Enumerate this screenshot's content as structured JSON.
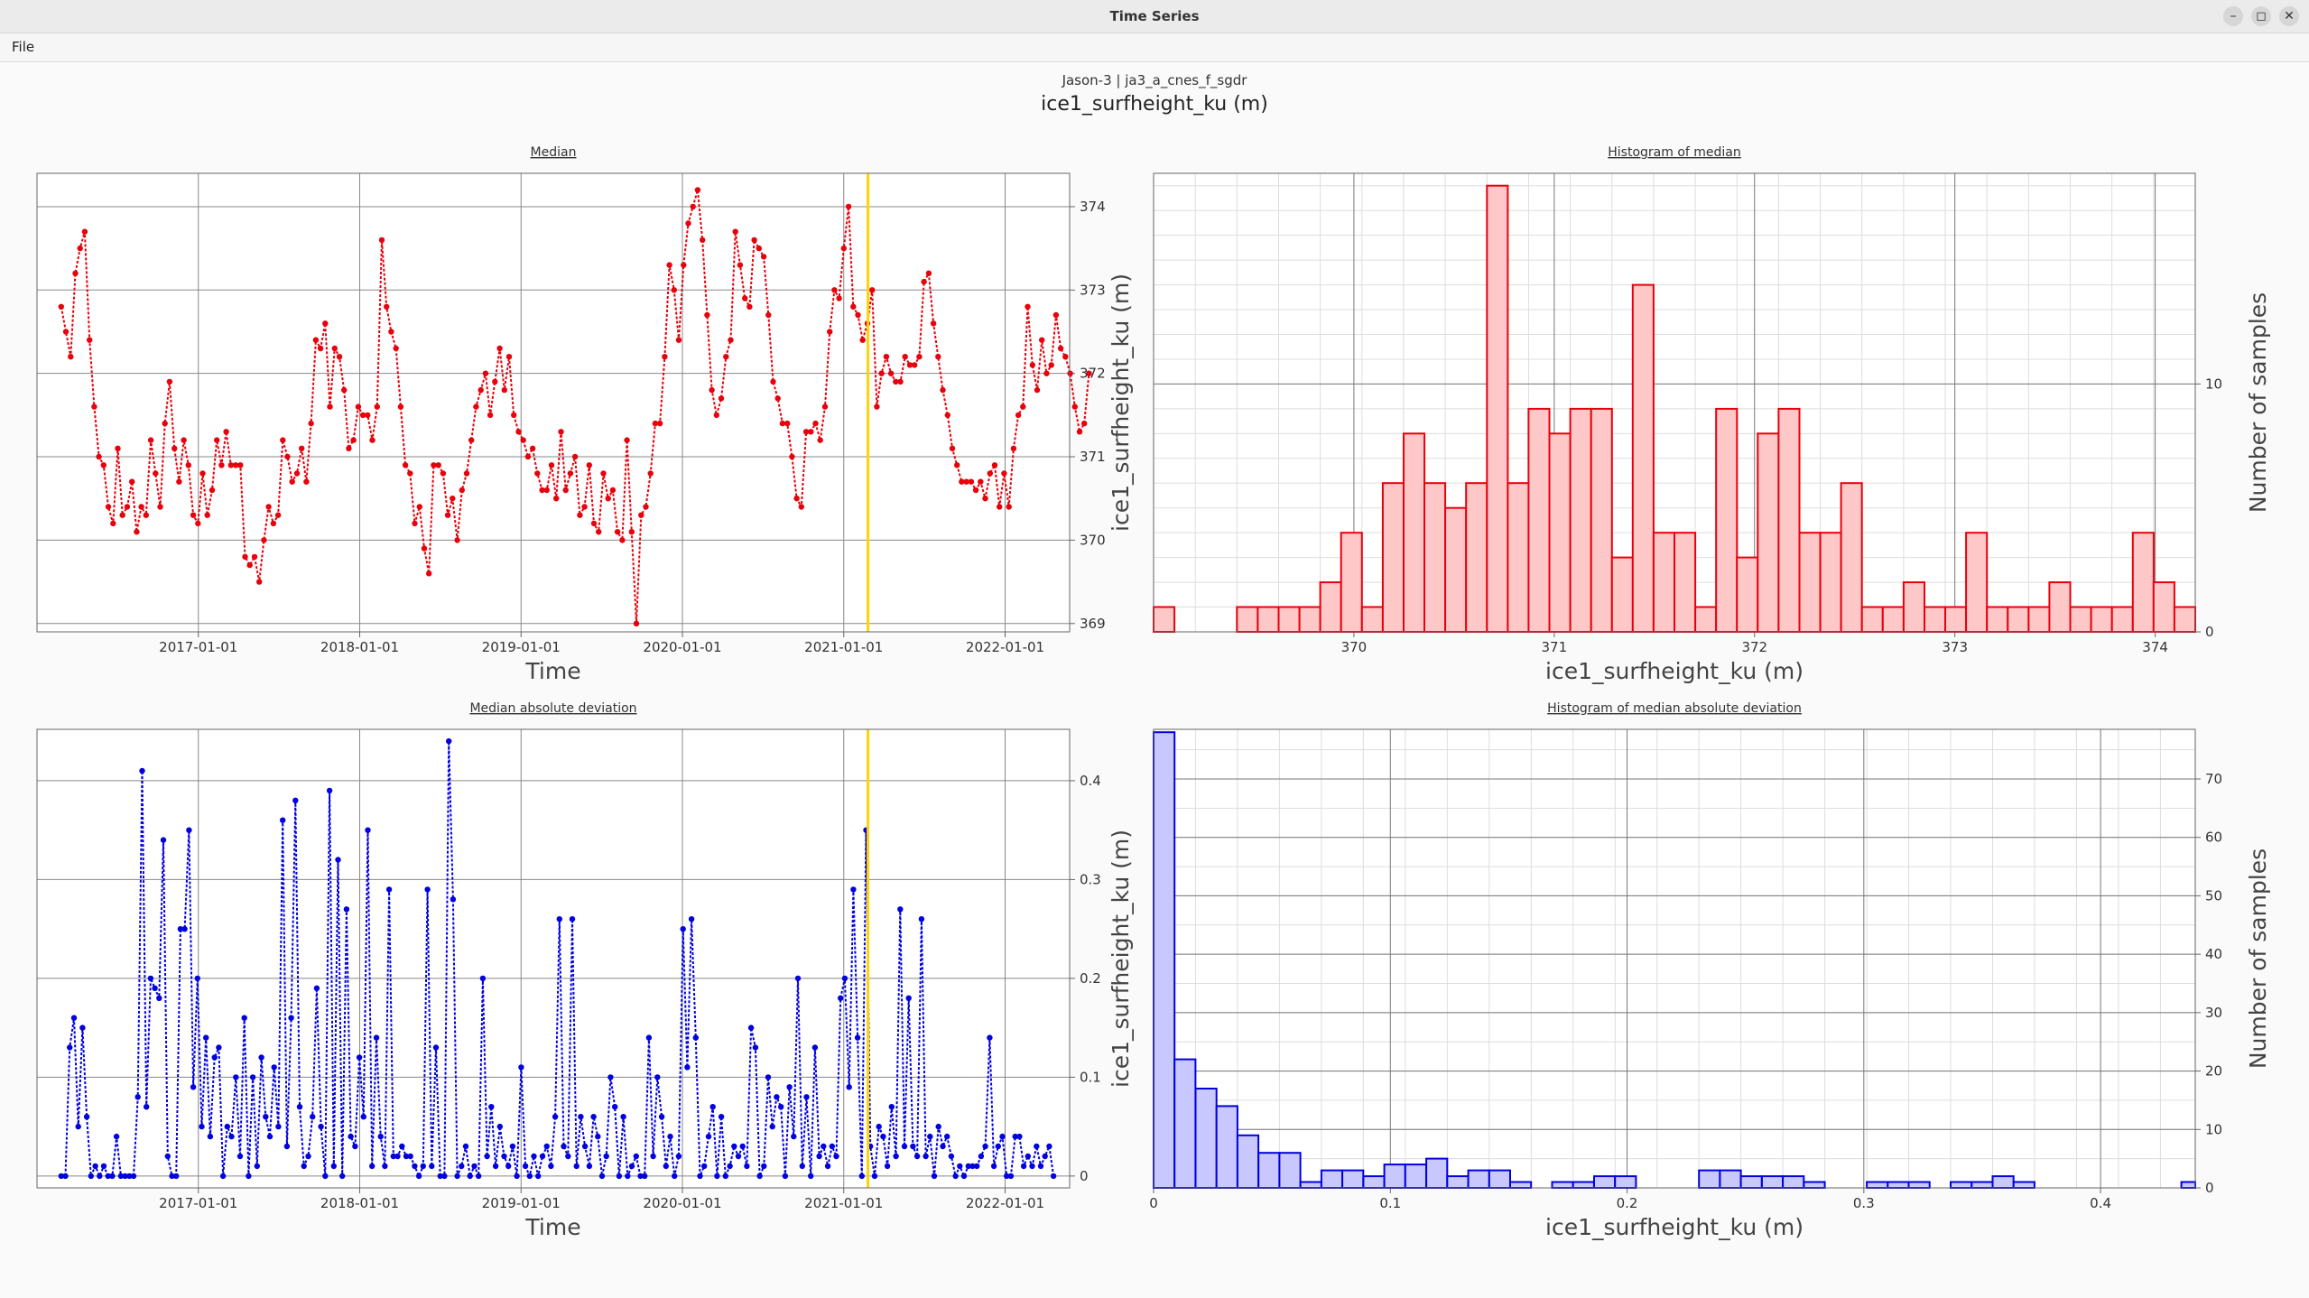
{
  "window": {
    "title": "Time Series"
  },
  "menu": {
    "file": "File"
  },
  "header": {
    "mission": "Jason-3 | ja3_a_cnes_f_sgdr",
    "variable": "ice1_surfheight_ku (m)"
  },
  "colors": {
    "median": "#e8000b",
    "mad": "#0000e0",
    "cursor": "#ffd400",
    "median_fill": "#ffc8c8",
    "mad_fill": "#c8c8ff"
  },
  "chart_data": [
    {
      "id": "median",
      "type": "line",
      "title": "Median",
      "xlabel": "Time",
      "ylabel": "",
      "x_ticks": [
        "2017-01-01",
        "2018-01-01",
        "2019-01-01",
        "2020-01-01",
        "2021-01-01",
        "2022-01-01"
      ],
      "x_start": 2016.15,
      "x_end": 2022.52,
      "xlim": [
        2016.0,
        2022.4
      ],
      "ylim": [
        368.9,
        374.4
      ],
      "y_ticks": [
        369,
        370,
        371,
        372,
        373,
        374
      ],
      "cursor_x": 2021.15,
      "values": [
        372.8,
        372.5,
        372.2,
        373.2,
        373.5,
        373.7,
        372.4,
        371.6,
        371.0,
        370.9,
        370.4,
        370.2,
        371.1,
        370.3,
        370.4,
        370.7,
        370.1,
        370.4,
        370.3,
        371.2,
        370.8,
        370.4,
        371.4,
        371.9,
        371.1,
        370.7,
        371.2,
        370.9,
        370.3,
        370.2,
        370.8,
        370.3,
        370.6,
        371.2,
        370.9,
        371.3,
        370.9,
        370.9,
        370.9,
        369.8,
        369.7,
        369.8,
        369.5,
        370.0,
        370.4,
        370.2,
        370.3,
        371.2,
        371.0,
        370.7,
        370.8,
        371.1,
        370.7,
        371.4,
        372.4,
        372.3,
        372.6,
        371.6,
        372.3,
        372.2,
        371.8,
        371.1,
        371.2,
        371.6,
        371.5,
        371.5,
        371.2,
        371.6,
        373.6,
        372.8,
        372.5,
        372.3,
        371.6,
        370.9,
        370.8,
        370.2,
        370.4,
        369.9,
        369.6,
        370.9,
        370.9,
        370.8,
        370.3,
        370.5,
        370.0,
        370.6,
        370.8,
        371.2,
        371.6,
        371.8,
        372.0,
        371.5,
        371.9,
        372.3,
        371.8,
        372.2,
        371.5,
        371.3,
        371.2,
        371.0,
        371.1,
        370.8,
        370.6,
        370.6,
        370.9,
        370.5,
        371.3,
        370.6,
        370.8,
        371.0,
        370.3,
        370.4,
        370.9,
        370.2,
        370.1,
        370.8,
        370.5,
        370.6,
        370.1,
        370.0,
        371.2,
        370.1,
        369.0,
        370.3,
        370.4,
        370.8,
        371.4,
        371.4,
        372.2,
        373.3,
        373.0,
        372.4,
        373.3,
        373.8,
        374.0,
        374.2,
        373.6,
        372.7,
        371.8,
        371.5,
        371.7,
        372.2,
        372.4,
        373.7,
        373.3,
        372.9,
        372.8,
        373.6,
        373.5,
        373.4,
        372.7,
        371.9,
        371.7,
        371.4,
        371.4,
        371.0,
        370.5,
        370.4,
        371.3,
        371.3,
        371.4,
        371.2,
        371.6,
        372.5,
        373.0,
        372.9,
        373.5,
        374.0,
        372.8,
        372.7,
        372.4,
        372.6,
        373.0,
        371.6,
        372.0,
        372.2,
        372.0,
        371.9,
        371.9,
        372.2,
        372.1,
        372.1,
        372.2,
        373.1,
        373.2,
        372.6,
        372.2,
        371.8,
        371.5,
        371.1,
        370.9,
        370.7,
        370.7,
        370.7,
        370.6,
        370.7,
        370.5,
        370.8,
        370.9,
        370.4,
        370.8,
        370.4,
        371.1,
        371.5,
        371.6,
        372.8,
        372.1,
        371.8,
        372.4,
        372.0,
        372.1,
        372.7,
        372.3,
        372.2,
        372.0,
        371.6,
        371.3,
        371.4,
        372.0
      ]
    },
    {
      "id": "median-hist",
      "type": "bar",
      "title": "Histogram of median",
      "xlabel": "ice1_surfheight_ku (m)",
      "ylabel": "ice1_surfheight_ku (m)",
      "y2label": "Number of samples",
      "xlim": [
        369.0,
        374.2
      ],
      "x_ticks": [
        370,
        371,
        372,
        373,
        374
      ],
      "ylim": [
        0,
        18.5
      ],
      "y_ticks": [
        0,
        10
      ],
      "bin_start": 369.0,
      "bin_width": 0.104,
      "counts": [
        1,
        0,
        0,
        0,
        1,
        1,
        1,
        1,
        2,
        4,
        1,
        6,
        8,
        6,
        5,
        6,
        18,
        6,
        9,
        8,
        9,
        9,
        3,
        14,
        4,
        4,
        1,
        9,
        3,
        8,
        9,
        4,
        4,
        6,
        1,
        1,
        2,
        1,
        1,
        4,
        1,
        1,
        1,
        2,
        1,
        1,
        1,
        4,
        2,
        1,
        0,
        1,
        0,
        1
      ]
    },
    {
      "id": "mad",
      "type": "line",
      "title": "Median absolute deviation",
      "xlabel": "Time",
      "ylabel": "",
      "x_ticks": [
        "2017-01-01",
        "2018-01-01",
        "2019-01-01",
        "2020-01-01",
        "2021-01-01",
        "2022-01-01"
      ],
      "x_start": 2016.15,
      "x_end": 2022.3,
      "xlim": [
        2016.0,
        2022.4
      ],
      "ylim": [
        -0.012,
        0.452
      ],
      "y_ticks": [
        0,
        0.1,
        0.2,
        0.3,
        0.4
      ],
      "cursor_x": 2021.15,
      "values": [
        0,
        0,
        0.13,
        0.16,
        0.05,
        0.15,
        0.06,
        0,
        0.01,
        0,
        0.01,
        0,
        0,
        0.04,
        0,
        0,
        0,
        0,
        0.08,
        0.41,
        0.07,
        0.2,
        0.19,
        0.18,
        0.34,
        0.02,
        0,
        0,
        0.25,
        0.25,
        0.35,
        0.09,
        0.2,
        0.05,
        0.14,
        0.04,
        0.12,
        0.13,
        0,
        0.05,
        0.04,
        0.1,
        0.02,
        0.16,
        0,
        0.1,
        0.01,
        0.12,
        0.06,
        0.04,
        0.11,
        0.05,
        0.36,
        0.03,
        0.16,
        0.38,
        0.07,
        0.01,
        0.02,
        0.06,
        0.19,
        0.05,
        0,
        0.39,
        0.01,
        0.32,
        0,
        0.27,
        0.04,
        0.03,
        0.12,
        0.06,
        0.35,
        0.01,
        0.14,
        0.04,
        0.01,
        0.29,
        0.02,
        0.02,
        0.03,
        0.02,
        0.02,
        0.01,
        0,
        0.01,
        0.29,
        0.01,
        0.13,
        0,
        0,
        0.44,
        0.28,
        0,
        0.01,
        0.03,
        0,
        0.01,
        0,
        0.2,
        0.02,
        0.07,
        0.01,
        0.05,
        0.02,
        0.01,
        0.03,
        0,
        0.11,
        0.01,
        0,
        0.02,
        0,
        0.02,
        0.03,
        0.01,
        0.06,
        0.26,
        0.03,
        0.02,
        0.26,
        0.01,
        0.06,
        0.03,
        0.01,
        0.06,
        0.04,
        0,
        0.02,
        0.1,
        0.07,
        0,
        0.06,
        0,
        0.01,
        0.02,
        0,
        0,
        0.14,
        0.02,
        0.1,
        0.06,
        0.01,
        0.04,
        0,
        0.02,
        0.25,
        0.11,
        0.26,
        0.14,
        0,
        0.01,
        0.04,
        0.07,
        0,
        0.06,
        0,
        0.01,
        0.03,
        0.02,
        0.03,
        0.01,
        0.15,
        0.13,
        0,
        0.01,
        0.1,
        0.05,
        0.08,
        0.07,
        0,
        0.09,
        0.04,
        0.2,
        0.01,
        0.08,
        0,
        0.13,
        0.02,
        0.03,
        0.01,
        0.03,
        0.02,
        0.18,
        0.2,
        0.09,
        0.29,
        0.14,
        0,
        0.35,
        0.03,
        0,
        0.05,
        0.04,
        0.01,
        0.07,
        0.02,
        0.27,
        0.03,
        0.18,
        0.03,
        0.02,
        0.26,
        0.02,
        0.04,
        0,
        0.05,
        0.03,
        0.04,
        0.02,
        0,
        0.01,
        0,
        0.01,
        0.01,
        0.01,
        0.02,
        0.03,
        0.14,
        0.01,
        0.03,
        0.04,
        0,
        0,
        0.04,
        0.04,
        0.01,
        0.02,
        0.01,
        0.03,
        0.01,
        0.02,
        0.03,
        0
      ]
    },
    {
      "id": "mad-hist",
      "type": "bar",
      "title": "Histogram of median absolute deviation",
      "xlabel": "ice1_surfheight_ku (m)",
      "ylabel": "ice1_surfheight_ku (m)",
      "y2label": "Number of samples",
      "xlim": [
        0,
        0.44
      ],
      "x_ticks": [
        0,
        0.1,
        0.2,
        0.3,
        0.4
      ],
      "ylim": [
        0,
        78.5
      ],
      "y_ticks": [
        0,
        10,
        20,
        30,
        40,
        50,
        60,
        70
      ],
      "bin_start": 0,
      "bin_width": 0.00886,
      "counts": [
        78,
        22,
        17,
        14,
        9,
        6,
        6,
        1,
        3,
        3,
        2,
        4,
        4,
        5,
        2,
        3,
        3,
        1,
        0,
        1,
        1,
        2,
        2,
        0,
        0,
        0,
        3,
        3,
        2,
        2,
        2,
        1,
        0,
        0,
        1,
        1,
        1,
        0,
        1,
        1,
        2,
        1,
        0,
        0,
        0,
        0,
        0,
        0,
        0,
        1,
        0,
        0,
        0,
        0,
        0,
        0,
        0,
        0,
        0,
        0,
        0,
        0,
        0,
        0,
        0,
        0,
        0,
        0,
        0,
        0,
        0,
        0,
        0,
        0,
        0,
        0,
        0,
        0,
        0,
        0,
        0,
        0,
        0,
        0,
        0,
        0,
        0,
        0,
        0,
        0,
        0,
        0,
        0,
        0,
        0,
        0,
        0,
        0,
        0,
        0
      ]
    }
  ]
}
